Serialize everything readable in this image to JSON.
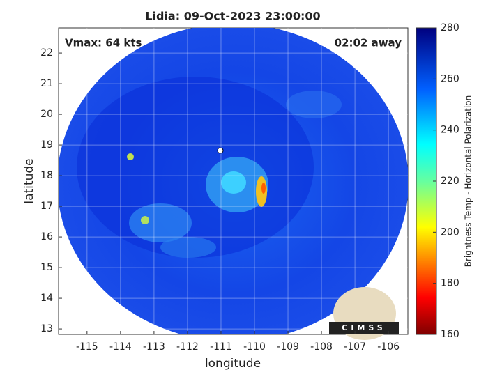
{
  "chart_data": {
    "type": "map",
    "title": "Lidia: 09-Oct-2023 23:00:00",
    "xlabel": "longitude",
    "ylabel": "latitude",
    "annotations": [
      "Vmax: 64 kts",
      "02:02 away"
    ],
    "logo": "CIMSS",
    "xlim": [
      -115.85,
      -105.42
    ],
    "xticks": [
      -115,
      -114,
      -113,
      -112,
      -111,
      -110,
      -109,
      -108,
      -107,
      -106
    ],
    "ylim": [
      12.82,
      22.82
    ],
    "yticks": [
      13,
      14,
      15,
      16,
      17,
      18,
      19,
      20,
      21,
      22
    ],
    "grid": true,
    "colorbar": {
      "label": "Brightness Temp - Horizontal Polarization",
      "clim": [
        160,
        280
      ],
      "ticks": [
        160,
        180,
        200,
        220,
        240,
        260,
        280
      ]
    }
  }
}
